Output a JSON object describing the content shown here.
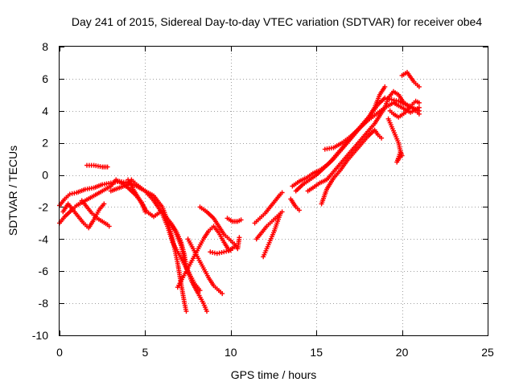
{
  "chart_data": {
    "type": "scatter",
    "title": "Day 241 of 2015, Sidereal Day-to-day VTEC variation (SDTVAR) for receiver obe4",
    "xlabel": "GPS time / hours",
    "ylabel": "SDTVAR / TECUs",
    "xlim": [
      0,
      25
    ],
    "ylim": [
      -10,
      8
    ],
    "xticks": [
      0,
      5,
      10,
      15,
      20,
      25
    ],
    "yticks": [
      -10,
      -8,
      -6,
      -4,
      -2,
      0,
      2,
      4,
      6,
      8
    ],
    "grid": true,
    "marker": "plus",
    "color": "#ff0000",
    "segments": [
      [
        [
          0.0,
          -1.9
        ],
        [
          0.3,
          -1.5
        ],
        [
          0.6,
          -1.2
        ],
        [
          1.0,
          -1.1
        ],
        [
          1.5,
          -0.9
        ],
        [
          2.0,
          -0.8
        ],
        [
          2.5,
          -0.6
        ],
        [
          3.0,
          -0.5
        ],
        [
          3.5,
          -0.4
        ],
        [
          4.0,
          -0.5
        ],
        [
          4.5,
          -0.7
        ],
        [
          5.0,
          -1.0
        ],
        [
          5.5,
          -1.3
        ],
        [
          6.0,
          -2.0
        ],
        [
          6.3,
          -2.8
        ],
        [
          6.6,
          -4.0
        ],
        [
          6.9,
          -5.5
        ],
        [
          7.1,
          -6.8
        ],
        [
          7.3,
          -8.0
        ],
        [
          7.4,
          -8.5
        ]
      ],
      [
        [
          0.0,
          -3.0
        ],
        [
          0.3,
          -2.6
        ],
        [
          0.7,
          -2.2
        ],
        [
          1.0,
          -1.9
        ],
        [
          1.5,
          -1.6
        ],
        [
          2.0,
          -1.3
        ],
        [
          2.5,
          -1.0
        ],
        [
          3.0,
          -0.7
        ],
        [
          3.3,
          -0.3
        ],
        [
          3.6,
          -0.5
        ],
        [
          4.0,
          -0.8
        ],
        [
          4.4,
          -1.2
        ],
        [
          4.8,
          -1.7
        ],
        [
          5.0,
          -2.3
        ]
      ],
      [
        [
          0.2,
          -2.3
        ],
        [
          0.5,
          -1.8
        ],
        [
          0.8,
          -2.2
        ],
        [
          1.1,
          -2.6
        ],
        [
          1.4,
          -3.0
        ],
        [
          1.7,
          -3.3
        ],
        [
          2.0,
          -2.8
        ],
        [
          2.3,
          -2.2
        ],
        [
          2.6,
          -1.8
        ]
      ],
      [
        [
          1.3,
          -1.6
        ],
        [
          1.6,
          -2.0
        ],
        [
          1.9,
          -2.4
        ],
        [
          2.2,
          -2.7
        ],
        [
          2.5,
          -2.9
        ],
        [
          2.8,
          -3.1
        ],
        [
          2.9,
          -3.2
        ]
      ],
      [
        [
          1.6,
          0.6
        ],
        [
          2.0,
          0.6
        ],
        [
          2.5,
          0.5
        ],
        [
          2.8,
          0.5
        ]
      ],
      [
        [
          3.0,
          -1.0
        ],
        [
          3.5,
          -0.8
        ],
        [
          4.0,
          -0.6
        ],
        [
          4.2,
          -0.3
        ],
        [
          4.5,
          -0.6
        ],
        [
          5.0,
          -1.0
        ],
        [
          5.5,
          -1.6
        ],
        [
          6.0,
          -2.4
        ],
        [
          6.3,
          -3.2
        ],
        [
          6.6,
          -4.2
        ],
        [
          7.0,
          -5.0
        ],
        [
          7.3,
          -5.6
        ],
        [
          7.6,
          -6.2
        ],
        [
          7.9,
          -6.8
        ],
        [
          8.2,
          -7.2
        ]
      ],
      [
        [
          4.0,
          -0.3
        ],
        [
          4.3,
          -0.9
        ],
        [
          4.7,
          -1.6
        ],
        [
          5.1,
          -2.3
        ],
        [
          5.5,
          -2.6
        ],
        [
          5.9,
          -2.3
        ],
        [
          6.2,
          -2.6
        ],
        [
          6.5,
          -3.0
        ],
        [
          6.8,
          -3.5
        ],
        [
          7.1,
          -4.2
        ],
        [
          7.3,
          -5.0
        ],
        [
          7.4,
          -5.8
        ]
      ],
      [
        [
          6.5,
          -3.0
        ],
        [
          6.8,
          -3.6
        ],
        [
          7.1,
          -4.4
        ],
        [
          7.3,
          -5.3
        ],
        [
          7.5,
          -6.0
        ],
        [
          7.7,
          -6.6
        ],
        [
          7.9,
          -7.0
        ],
        [
          8.1,
          -7.4
        ],
        [
          8.4,
          -8.0
        ],
        [
          8.6,
          -8.5
        ]
      ],
      [
        [
          7.5,
          -4.0
        ],
        [
          7.8,
          -4.6
        ],
        [
          8.1,
          -5.2
        ],
        [
          8.4,
          -5.8
        ],
        [
          8.7,
          -6.4
        ],
        [
          9.0,
          -6.9
        ],
        [
          9.3,
          -7.2
        ],
        [
          9.5,
          -7.4
        ]
      ],
      [
        [
          6.9,
          -7.0
        ],
        [
          7.2,
          -6.4
        ],
        [
          7.5,
          -5.8
        ],
        [
          7.8,
          -5.2
        ],
        [
          8.1,
          -4.6
        ],
        [
          8.4,
          -4.0
        ],
        [
          8.7,
          -3.5
        ],
        [
          9.0,
          -3.2
        ],
        [
          9.3,
          -3.6
        ],
        [
          9.6,
          -4.2
        ],
        [
          9.9,
          -4.7
        ],
        [
          10.2,
          -4.5
        ]
      ],
      [
        [
          8.2,
          -2.0
        ],
        [
          8.6,
          -2.3
        ],
        [
          9.0,
          -2.7
        ],
        [
          9.3,
          -3.2
        ],
        [
          9.6,
          -3.7
        ],
        [
          9.9,
          -4.0
        ],
        [
          10.2,
          -4.3
        ],
        [
          10.4,
          -4.6
        ],
        [
          10.5,
          -3.9
        ]
      ],
      [
        [
          8.8,
          -4.8
        ],
        [
          9.2,
          -4.9
        ],
        [
          9.6,
          -4.8
        ],
        [
          10.0,
          -4.7
        ]
      ],
      [
        [
          9.8,
          -2.7
        ],
        [
          10.1,
          -2.9
        ],
        [
          10.4,
          -2.9
        ],
        [
          10.6,
          -2.8
        ]
      ],
      [
        [
          11.4,
          -3.0
        ],
        [
          11.7,
          -2.7
        ],
        [
          12.0,
          -2.4
        ],
        [
          12.3,
          -2.0
        ],
        [
          12.6,
          -1.6
        ],
        [
          12.9,
          -1.2
        ],
        [
          13.0,
          -1.1
        ]
      ],
      [
        [
          11.5,
          -4.0
        ],
        [
          11.8,
          -3.6
        ],
        [
          12.1,
          -3.2
        ],
        [
          12.4,
          -2.9
        ],
        [
          12.7,
          -2.6
        ],
        [
          13.0,
          -2.3
        ]
      ],
      [
        [
          11.9,
          -5.1
        ],
        [
          12.1,
          -4.6
        ],
        [
          12.3,
          -4.1
        ],
        [
          12.5,
          -3.6
        ],
        [
          12.7,
          -3.0
        ],
        [
          12.9,
          -2.4
        ]
      ],
      [
        [
          13.5,
          -1.5
        ],
        [
          13.8,
          -2.0
        ],
        [
          14.0,
          -2.2
        ]
      ],
      [
        [
          13.6,
          -0.7
        ],
        [
          14.0,
          -0.4
        ],
        [
          14.4,
          -0.2
        ],
        [
          14.8,
          0.1
        ],
        [
          15.2,
          0.3
        ],
        [
          15.6,
          0.6
        ],
        [
          16.0,
          1.0
        ],
        [
          16.4,
          1.5
        ],
        [
          16.8,
          2.0
        ],
        [
          17.2,
          2.5
        ],
        [
          17.6,
          3.0
        ],
        [
          18.0,
          3.5
        ],
        [
          18.4,
          4.2
        ],
        [
          18.7,
          5.0
        ],
        [
          19.0,
          5.5
        ]
      ],
      [
        [
          13.8,
          -1.0
        ],
        [
          14.2,
          -0.6
        ],
        [
          14.6,
          -0.3
        ],
        [
          15.0,
          0.0
        ],
        [
          15.4,
          0.4
        ],
        [
          15.8,
          0.8
        ],
        [
          16.2,
          1.3
        ],
        [
          16.6,
          1.8
        ],
        [
          17.0,
          2.3
        ],
        [
          17.4,
          2.8
        ],
        [
          17.8,
          3.3
        ],
        [
          18.2,
          3.8
        ],
        [
          18.6,
          4.4
        ],
        [
          19.0,
          4.8
        ],
        [
          19.4,
          4.7
        ],
        [
          19.8,
          4.6
        ],
        [
          20.2,
          4.4
        ],
        [
          20.6,
          4.2
        ],
        [
          21.0,
          4.0
        ]
      ],
      [
        [
          14.5,
          -1.0
        ],
        [
          14.8,
          -0.8
        ],
        [
          15.2,
          -0.5
        ],
        [
          15.6,
          -0.3
        ],
        [
          16.0,
          0.2
        ],
        [
          16.4,
          0.7
        ],
        [
          16.8,
          1.2
        ],
        [
          17.2,
          1.7
        ],
        [
          17.6,
          2.2
        ],
        [
          18.0,
          2.7
        ],
        [
          18.4,
          3.2
        ],
        [
          18.7,
          3.7
        ],
        [
          19.0,
          4.2
        ],
        [
          19.2,
          4.8
        ],
        [
          19.5,
          5.2
        ],
        [
          19.8,
          5.0
        ],
        [
          20.1,
          4.5
        ],
        [
          20.4,
          4.3
        ],
        [
          20.7,
          4.1
        ],
        [
          21.0,
          3.8
        ]
      ],
      [
        [
          15.3,
          -1.8
        ],
        [
          15.6,
          -0.9
        ],
        [
          16.0,
          -0.2
        ],
        [
          16.4,
          0.3
        ],
        [
          16.8,
          0.9
        ],
        [
          17.2,
          1.4
        ],
        [
          17.6,
          1.9
        ],
        [
          18.0,
          2.4
        ],
        [
          18.4,
          2.8
        ],
        [
          18.6,
          2.5
        ],
        [
          18.8,
          2.3
        ]
      ],
      [
        [
          15.5,
          1.6
        ],
        [
          16.0,
          1.7
        ],
        [
          16.5,
          2.0
        ],
        [
          17.0,
          2.4
        ],
        [
          17.5,
          2.9
        ],
        [
          18.0,
          3.4
        ],
        [
          18.5,
          3.8
        ],
        [
          19.0,
          4.2
        ],
        [
          19.5,
          4.5
        ],
        [
          20.0,
          4.2
        ],
        [
          20.5,
          3.9
        ],
        [
          21.0,
          4.2
        ]
      ],
      [
        [
          19.2,
          3.5
        ],
        [
          19.4,
          3.0
        ],
        [
          19.6,
          2.5
        ],
        [
          19.8,
          2.0
        ],
        [
          19.9,
          1.5
        ],
        [
          20.0,
          1.2
        ],
        [
          19.8,
          1.0
        ],
        [
          19.7,
          0.8
        ],
        [
          19.9,
          1.4
        ]
      ],
      [
        [
          19.3,
          4.0
        ],
        [
          19.5,
          3.8
        ],
        [
          19.8,
          3.6
        ],
        [
          20.2,
          3.9
        ],
        [
          20.5,
          4.3
        ],
        [
          20.8,
          4.6
        ],
        [
          21.0,
          4.5
        ]
      ],
      [
        [
          20.0,
          6.2
        ],
        [
          20.3,
          6.4
        ],
        [
          20.5,
          6.1
        ],
        [
          20.7,
          5.8
        ],
        [
          21.0,
          5.5
        ]
      ]
    ]
  }
}
